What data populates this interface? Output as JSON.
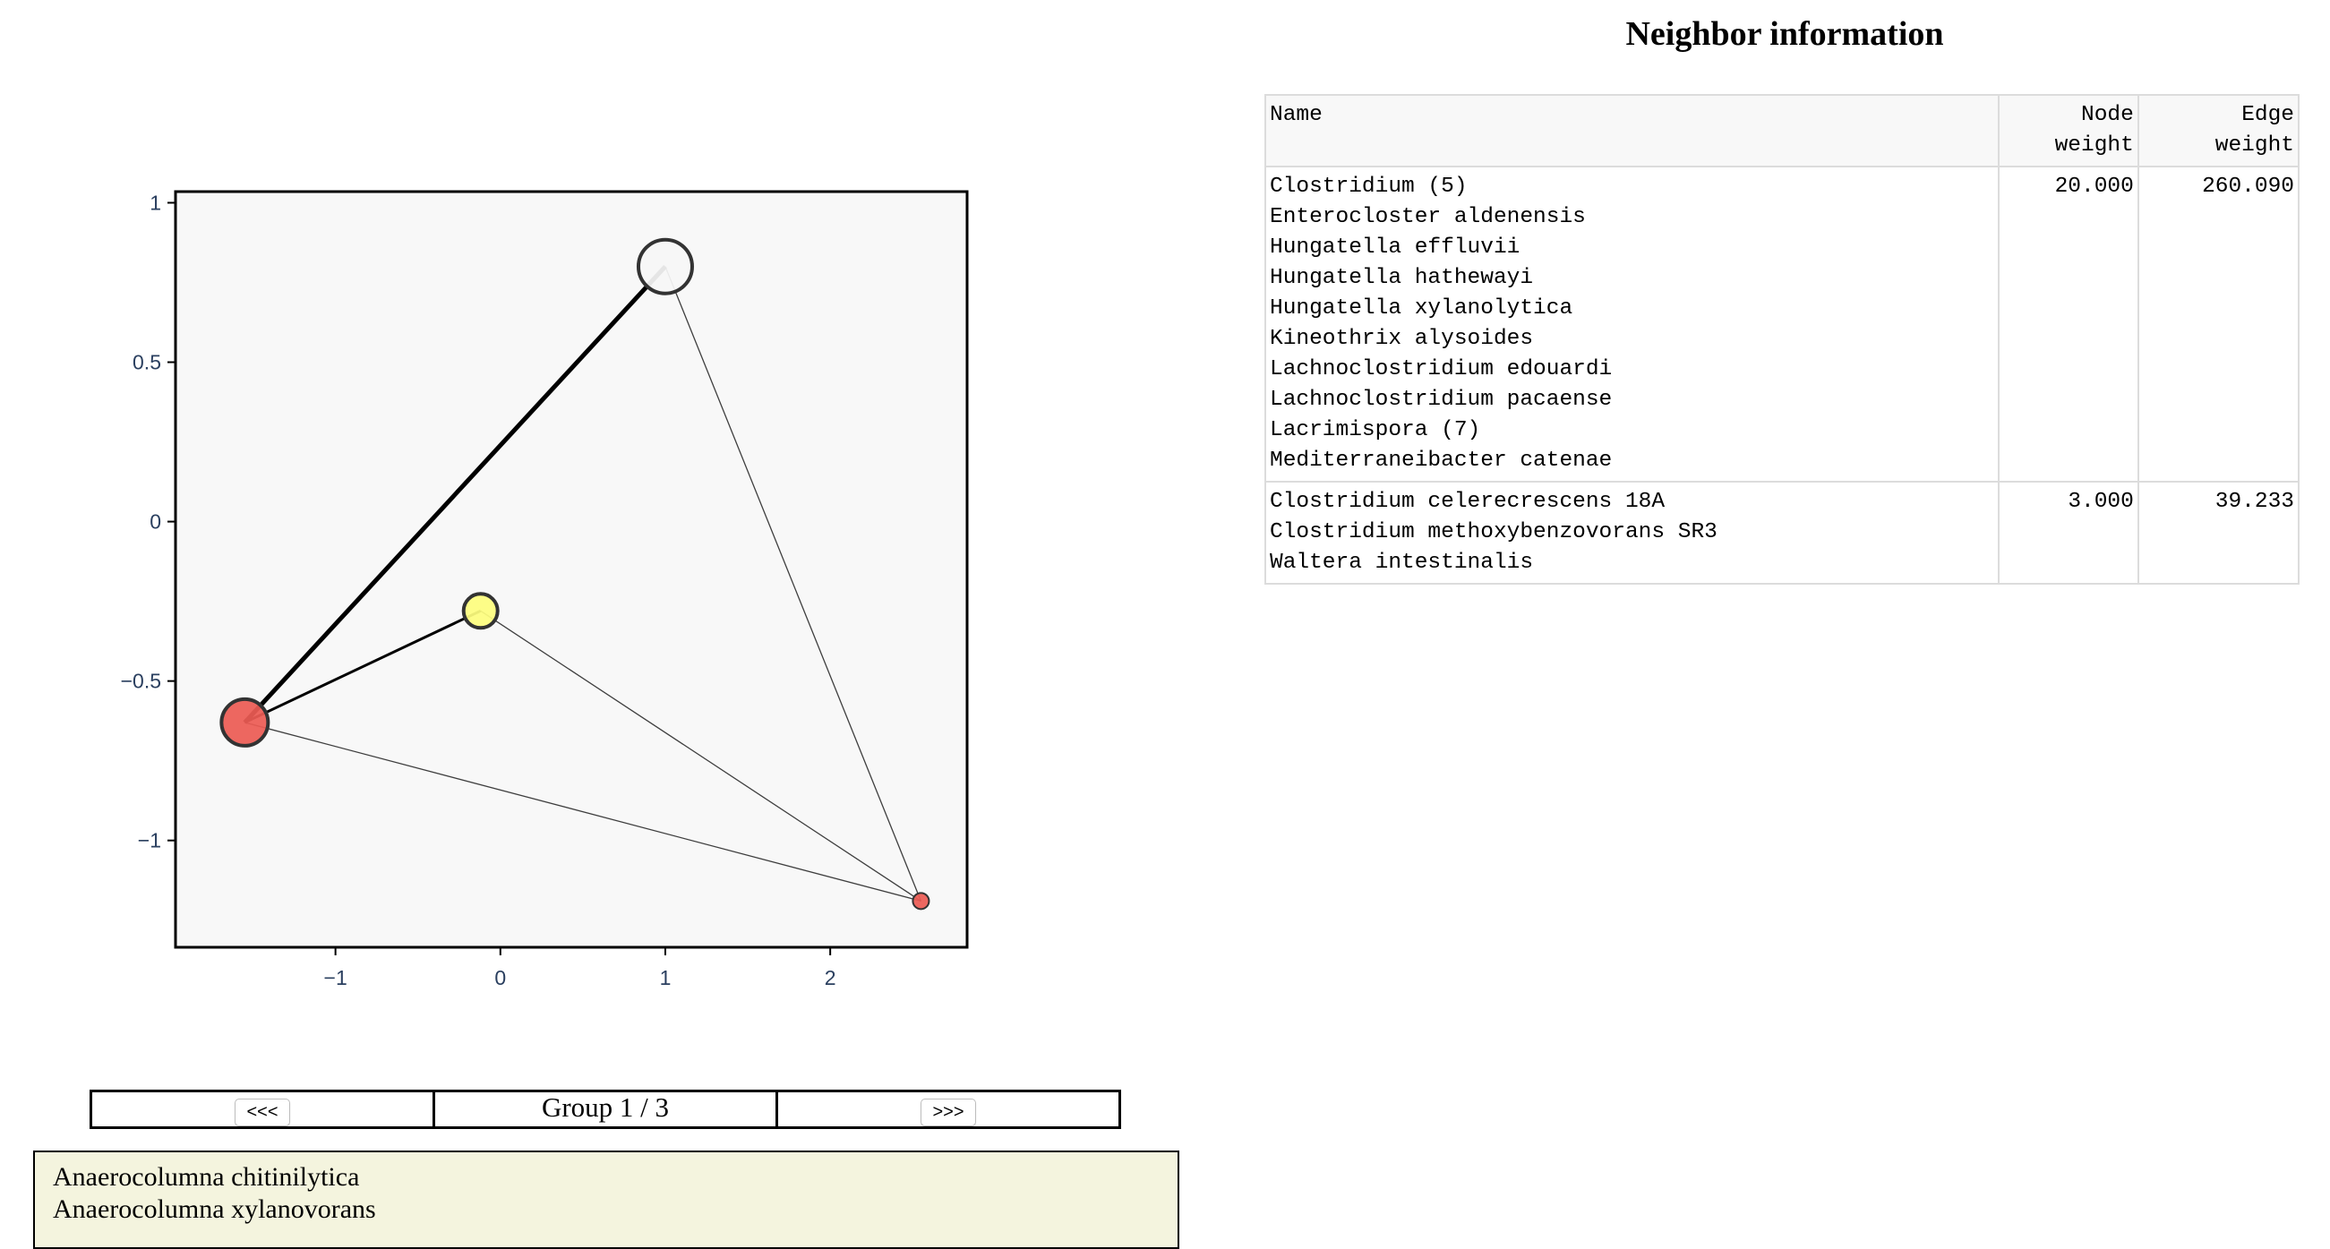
{
  "plot": {
    "x_ticks": [
      "−1",
      "0",
      "1",
      "2"
    ],
    "y_ticks": [
      "1",
      "0.5",
      "0",
      "−0.5",
      "−1"
    ],
    "background": "#f8f8f8",
    "nodes": [
      {
        "x": 1.0,
        "y": 0.8,
        "color": "#f6f6f6",
        "size": "large"
      },
      {
        "x": -0.12,
        "y": -0.28,
        "color": "#fdfd7e",
        "size": "small"
      },
      {
        "x": -1.55,
        "y": -0.63,
        "color": "#ec5b54",
        "size": "medium"
      },
      {
        "x": 2.55,
        "y": -1.19,
        "color": "#ec5b54",
        "size": "tiny"
      }
    ],
    "edges": [
      {
        "from": 2,
        "to": 0,
        "weight": "heavy"
      },
      {
        "from": 2,
        "to": 1,
        "weight": "medium"
      },
      {
        "from": 2,
        "to": 3,
        "weight": "thin"
      },
      {
        "from": 1,
        "to": 3,
        "weight": "thin"
      },
      {
        "from": 0,
        "to": 3,
        "weight": "thin"
      }
    ]
  },
  "nav": {
    "prev_label": "<<<",
    "group_label": "Group 1 / 3",
    "next_label": ">>>"
  },
  "members": [
    "Anaerocolumna chitinilytica",
    "Anaerocolumna xylanovorans"
  ],
  "neighbor": {
    "title": "Neighbor information",
    "headers": {
      "name": "Name",
      "node_weight": "Node\nweight",
      "edge_weight": "Edge\nweight"
    },
    "rows": [
      {
        "names": [
          "Clostridium (5)",
          "Enterocloster aldenensis",
          "Hungatella effluvii",
          "Hungatella hathewayi",
          "Hungatella xylanolytica",
          "Kineothrix alysoides",
          "Lachnoclostridium edouardi",
          "Lachnoclostridium pacaense",
          "Lacrimispora (7)",
          "Mediterraneibacter catenae"
        ],
        "node_weight": "20.000",
        "edge_weight": "260.090"
      },
      {
        "names": [
          "Clostridium celerecrescens 18A",
          "Clostridium methoxybenzovorans SR3",
          "Waltera intestinalis"
        ],
        "node_weight": "3.000",
        "edge_weight": "39.233"
      }
    ]
  }
}
